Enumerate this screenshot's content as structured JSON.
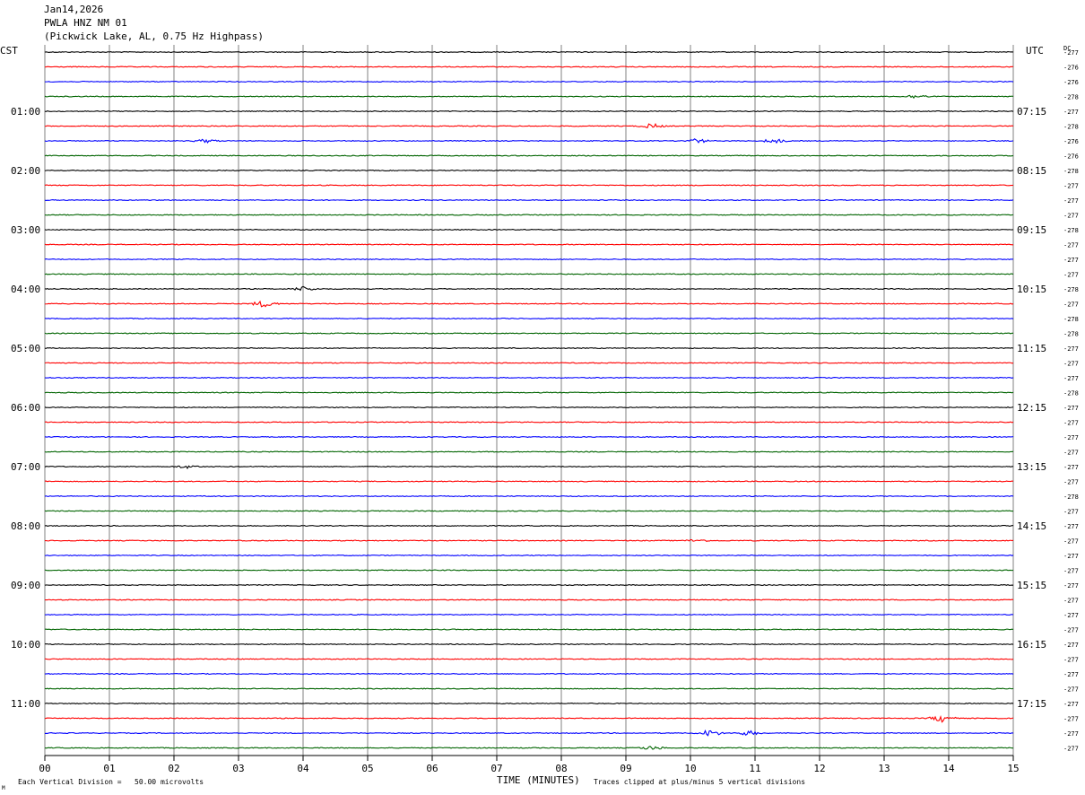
{
  "header": {
    "date": "Jan14,2026",
    "station": "PWLA HNZ NM 01",
    "location": "(Pickwick Lake, AL, 0.75 Hz Highpass)"
  },
  "left_timezone": "CST",
  "right_timezone": "UTC",
  "dc_label": "DC",
  "footer": {
    "scale_note": "Each Vertical Division =   50.00 microvolts",
    "x_axis_title": "TIME (MINUTES)",
    "clip_note": "Traces clipped at plus/minus 5 vertical divisions",
    "corner_mark": "M"
  },
  "colors": {
    "trace_cycle": [
      "#000000",
      "#ff0000",
      "#0000ff",
      "#006400"
    ],
    "grid": "#808080"
  },
  "chart_data": {
    "type": "line",
    "title": "PWLA HNZ NM 01",
    "xlabel": "TIME (MINUTES)",
    "xlim": [
      0,
      15
    ],
    "x_ticks": [
      "00",
      "01",
      "02",
      "03",
      "04",
      "05",
      "06",
      "07",
      "08",
      "09",
      "10",
      "11",
      "12",
      "13",
      "14",
      "15"
    ],
    "trace_count": 48,
    "trace_minutes": 15,
    "left_hour_labels": [
      {
        "trace": 4,
        "label": "01:00"
      },
      {
        "trace": 8,
        "label": "02:00"
      },
      {
        "trace": 12,
        "label": "03:00"
      },
      {
        "trace": 16,
        "label": "04:00"
      },
      {
        "trace": 20,
        "label": "05:00"
      },
      {
        "trace": 24,
        "label": "06:00"
      },
      {
        "trace": 28,
        "label": "07:00"
      },
      {
        "trace": 32,
        "label": "08:00"
      },
      {
        "trace": 36,
        "label": "09:00"
      },
      {
        "trace": 40,
        "label": "10:00"
      },
      {
        "trace": 44,
        "label": "11:00"
      }
    ],
    "right_hour_labels": [
      {
        "trace": 4,
        "label": "07:15"
      },
      {
        "trace": 8,
        "label": "08:15"
      },
      {
        "trace": 12,
        "label": "09:15"
      },
      {
        "trace": 16,
        "label": "10:15"
      },
      {
        "trace": 20,
        "label": "11:15"
      },
      {
        "trace": 24,
        "label": "12:15"
      },
      {
        "trace": 28,
        "label": "13:15"
      },
      {
        "trace": 32,
        "label": "14:15"
      },
      {
        "trace": 36,
        "label": "15:15"
      },
      {
        "trace": 40,
        "label": "16:15"
      },
      {
        "trace": 44,
        "label": "17:15"
      }
    ],
    "dc_offsets": [
      "-277",
      "-276",
      "-276",
      "-278",
      "-277",
      "-278",
      "-276",
      "-276",
      "-278",
      "-277",
      "-277",
      "-277",
      "-278",
      "-277",
      "-277",
      "-277",
      "-278",
      "-277",
      "-278",
      "-278",
      "-277",
      "-277",
      "-277",
      "-278",
      "-277",
      "-277",
      "-277",
      "-277",
      "-277",
      "-277",
      "-278",
      "-277",
      "-277",
      "-277",
      "-277",
      "-277",
      "-277",
      "-277",
      "-277",
      "-277",
      "-277",
      "-277",
      "-277",
      "-277",
      "-277",
      "-277",
      "-277",
      "-277"
    ],
    "events": [
      {
        "trace": 5,
        "minute": 9.4,
        "amp": 2.2
      },
      {
        "trace": 6,
        "minute": 2.5,
        "amp": 1.6
      },
      {
        "trace": 6,
        "minute": 10.1,
        "amp": 2.0
      },
      {
        "trace": 6,
        "minute": 11.3,
        "amp": 2.0
      },
      {
        "trace": 17,
        "minute": 3.4,
        "amp": 3.2
      },
      {
        "trace": 16,
        "minute": 4.0,
        "amp": 2.2
      },
      {
        "trace": 3,
        "minute": 13.5,
        "amp": 1.8
      },
      {
        "trace": 28,
        "minute": 2.2,
        "amp": 1.4
      },
      {
        "trace": 33,
        "minute": 10.1,
        "amp": 1.2
      },
      {
        "trace": 45,
        "minute": 13.9,
        "amp": 3.5
      },
      {
        "trace": 46,
        "minute": 10.3,
        "amp": 3.0
      },
      {
        "trace": 46,
        "minute": 10.9,
        "amp": 2.2
      },
      {
        "trace": 47,
        "minute": 9.4,
        "amp": 1.8
      }
    ]
  }
}
